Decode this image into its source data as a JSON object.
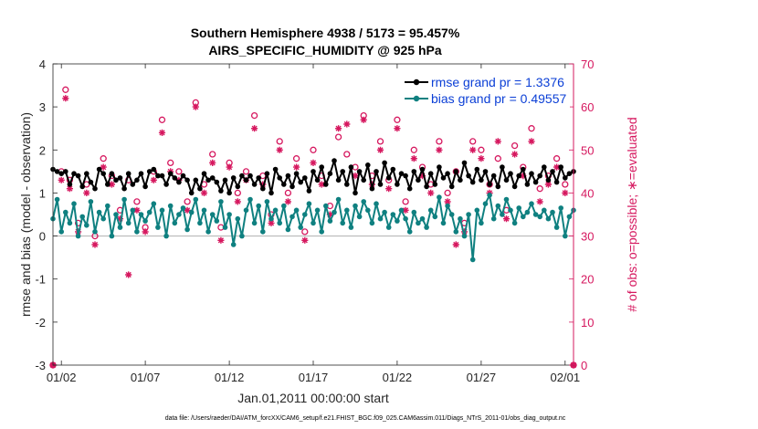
{
  "chart_data": {
    "type": "line",
    "title": "Southern Hemisphere 4938 / 5173 = 95.457%",
    "subtitle": "AIRS_SPECIFIC_HUMIDITY @ 925 hPa",
    "xlabel": "Jan.01,2011 00:00:00 start",
    "ylabel": "rmse and bias (model - observation)",
    "y2label": "# of obs: o=possible; ∗=evaluated",
    "footnote": "data file: /Users/raeder/DAI/ATM_forcXX/CAM6_setup/f.e21.FHIST_BGC.f09_025.CAM6assim.011/Diags_NTrS_2011-01/obs_diag_output.nc",
    "xlim": [
      0.5,
      31.5
    ],
    "ylim": [
      -3,
      4
    ],
    "y2lim": [
      0,
      70
    ],
    "x_ticks": [
      1,
      6,
      11,
      16,
      21,
      26,
      31
    ],
    "x_tick_labels": [
      "01/02",
      "01/07",
      "01/12",
      "01/17",
      "01/22",
      "01/27",
      "02/01"
    ],
    "y_ticks": [
      -3,
      -2,
      -1,
      0,
      1,
      2,
      3,
      4
    ],
    "y2_ticks": [
      0,
      10,
      20,
      30,
      40,
      50,
      60,
      70
    ],
    "legend_position": "top-right",
    "colors": {
      "rmse": "#000000",
      "bias": "#0f8080",
      "obs": "#d6185f",
      "zero_line": "#b0b0b0"
    },
    "series": [
      {
        "name": "rmse grand pr = 1.3376",
        "axis": "left",
        "color": "#000000",
        "x": [
          0.5,
          0.75,
          1.0,
          1.25,
          1.5,
          1.75,
          2.0,
          2.25,
          2.5,
          2.75,
          3.0,
          3.25,
          3.5,
          3.75,
          4.0,
          4.25,
          4.5,
          4.75,
          5.0,
          5.25,
          5.5,
          5.75,
          6.0,
          6.25,
          6.5,
          6.75,
          7.0,
          7.25,
          7.5,
          7.75,
          8.0,
          8.25,
          8.5,
          8.75,
          9.0,
          9.25,
          9.5,
          9.75,
          10.0,
          10.25,
          10.5,
          10.75,
          11.0,
          11.25,
          11.5,
          11.75,
          12.0,
          12.25,
          12.5,
          12.75,
          13.0,
          13.25,
          13.5,
          13.75,
          14.0,
          14.25,
          14.5,
          14.75,
          15.0,
          15.25,
          15.5,
          15.75,
          16.0,
          16.25,
          16.5,
          16.75,
          17.0,
          17.25,
          17.5,
          17.75,
          18.0,
          18.25,
          18.5,
          18.75,
          19.0,
          19.25,
          19.5,
          19.75,
          20.0,
          20.25,
          20.5,
          20.75,
          21.0,
          21.25,
          21.5,
          21.75,
          22.0,
          22.25,
          22.5,
          22.75,
          23.0,
          23.25,
          23.5,
          23.75,
          24.0,
          24.25,
          24.5,
          24.75,
          25.0,
          25.25,
          25.5,
          25.75,
          26.0,
          26.25,
          26.5,
          26.75,
          27.0,
          27.25,
          27.5,
          27.75,
          28.0,
          28.25,
          28.5,
          28.75,
          29.0,
          29.25,
          29.5,
          29.75,
          30.0,
          30.25,
          30.5,
          30.75,
          31.0,
          31.25,
          31.5
        ],
        "y": [
          1.55,
          1.5,
          1.45,
          1.5,
          1.2,
          1.45,
          1.4,
          1.15,
          1.45,
          1.25,
          1.1,
          1.55,
          1.45,
          1.2,
          1.45,
          1.3,
          1.35,
          1.1,
          1.45,
          1.2,
          1.3,
          1.45,
          1.15,
          1.5,
          1.55,
          1.4,
          1.4,
          1.2,
          1.45,
          1.35,
          1.25,
          1.4,
          1.3,
          1.0,
          1.3,
          1.1,
          1.45,
          1.3,
          1.35,
          1.25,
          1.05,
          1.3,
          1.0,
          1.35,
          1.15,
          1.4,
          1.3,
          1.4,
          1.2,
          1.35,
          1.1,
          1.45,
          1.0,
          1.55,
          1.35,
          1.2,
          1.4,
          1.15,
          1.45,
          1.25,
          1.35,
          1.05,
          1.5,
          1.3,
          1.6,
          1.2,
          1.45,
          1.75,
          1.3,
          1.5,
          1.2,
          1.6,
          1.0,
          1.5,
          1.3,
          1.65,
          1.1,
          1.5,
          1.2,
          1.7,
          1.35,
          1.55,
          1.2,
          1.45,
          1.4,
          1.1,
          1.5,
          1.3,
          1.55,
          1.15,
          1.45,
          1.2,
          1.6,
          1.35,
          1.45,
          1.15,
          1.5,
          1.3,
          1.7,
          1.4,
          1.25,
          1.55,
          1.3,
          1.5,
          1.2,
          1.4,
          1.15,
          1.6,
          1.3,
          1.45,
          1.15,
          1.4,
          1.55,
          1.2,
          1.45,
          1.25,
          1.4,
          1.6,
          1.3,
          1.5,
          1.25,
          1.6,
          1.35,
          1.45,
          1.5
        ]
      },
      {
        "name": "bias grand pr = 0.49557",
        "axis": "left",
        "color": "#0f8080",
        "x": [
          0.5,
          0.75,
          1.0,
          1.25,
          1.5,
          1.75,
          2.0,
          2.25,
          2.5,
          2.75,
          3.0,
          3.25,
          3.5,
          3.75,
          4.0,
          4.25,
          4.5,
          4.75,
          5.0,
          5.25,
          5.5,
          5.75,
          6.0,
          6.25,
          6.5,
          6.75,
          7.0,
          7.25,
          7.5,
          7.75,
          8.0,
          8.25,
          8.5,
          8.75,
          9.0,
          9.25,
          9.5,
          9.75,
          10.0,
          10.25,
          10.5,
          10.75,
          11.0,
          11.25,
          11.5,
          11.75,
          12.0,
          12.25,
          12.5,
          12.75,
          13.0,
          13.25,
          13.5,
          13.75,
          14.0,
          14.25,
          14.5,
          14.75,
          15.0,
          15.25,
          15.5,
          15.75,
          16.0,
          16.25,
          16.5,
          16.75,
          17.0,
          17.25,
          17.5,
          17.75,
          18.0,
          18.25,
          18.5,
          18.75,
          19.0,
          19.25,
          19.5,
          19.75,
          20.0,
          20.25,
          20.5,
          20.75,
          21.0,
          21.25,
          21.5,
          21.75,
          22.0,
          22.25,
          22.5,
          22.75,
          23.0,
          23.25,
          23.5,
          23.75,
          24.0,
          24.25,
          24.5,
          24.75,
          25.0,
          25.25,
          25.5,
          25.75,
          26.0,
          26.25,
          26.5,
          26.75,
          27.0,
          27.25,
          27.5,
          27.75,
          28.0,
          28.25,
          28.5,
          28.75,
          29.0,
          29.25,
          29.5,
          29.75,
          30.0,
          30.25,
          30.5,
          30.75,
          31.0,
          31.25,
          31.5
        ],
        "y": [
          0.4,
          0.85,
          0.1,
          0.55,
          0.3,
          0.75,
          0.0,
          0.45,
          0.25,
          0.8,
          0.1,
          0.55,
          0.4,
          0.7,
          0.0,
          0.5,
          0.2,
          0.85,
          0.3,
          0.6,
          0.1,
          0.5,
          0.35,
          0.55,
          0.75,
          0.2,
          0.6,
          0.0,
          0.7,
          0.3,
          0.5,
          0.65,
          0.15,
          0.55,
          0.85,
          0.3,
          0.6,
          0.1,
          0.5,
          0.35,
          0.8,
          0.2,
          0.5,
          -0.2,
          0.4,
          0.0,
          0.6,
          0.85,
          0.3,
          0.7,
          0.1,
          0.8,
          0.4,
          0.6,
          0.3,
          0.7,
          0.15,
          0.45,
          0.6,
          0.2,
          0.5,
          0.75,
          0.3,
          0.6,
          0.1,
          0.7,
          0.35,
          0.55,
          0.85,
          0.3,
          0.6,
          0.2,
          0.7,
          0.45,
          0.8,
          0.6,
          0.3,
          0.75,
          0.4,
          0.55,
          0.2,
          0.5,
          0.35,
          0.6,
          0.4,
          0.1,
          0.55,
          0.3,
          0.4,
          0.2,
          0.6,
          0.45,
          0.9,
          0.3,
          0.7,
          0.5,
          0.1,
          0.4,
          0.0,
          0.5,
          -0.55,
          0.6,
          0.3,
          0.75,
          0.95,
          0.4,
          0.7,
          0.5,
          0.85,
          0.6,
          0.3,
          0.65,
          0.45,
          0.55,
          0.75,
          0.5,
          0.45,
          0.6,
          0.4,
          0.55,
          0.2,
          0.65,
          0.0,
          0.45,
          0.6
        ]
      }
    ],
    "obs_possible": {
      "name": "possible",
      "marker": "o",
      "axis": "right",
      "x": [
        0.5,
        1.0,
        1.25,
        1.5,
        2.0,
        2.5,
        3.0,
        3.5,
        4.0,
        4.5,
        5.0,
        5.5,
        6.0,
        6.5,
        7.0,
        7.5,
        8.0,
        8.5,
        9.0,
        9.5,
        10.0,
        10.5,
        11.0,
        11.5,
        12.0,
        12.5,
        13.0,
        13.5,
        14.0,
        14.5,
        15.0,
        15.5,
        16.0,
        16.5,
        17.0,
        17.5,
        18.0,
        18.5,
        19.0,
        19.5,
        20.0,
        20.5,
        21.0,
        21.5,
        22.0,
        22.5,
        23.0,
        23.5,
        24.0,
        24.5,
        25.0,
        25.5,
        26.0,
        26.5,
        27.0,
        27.5,
        28.0,
        28.5,
        29.0,
        29.5,
        30.0,
        30.5,
        31.0,
        31.5
      ],
      "y": [
        0,
        45,
        64,
        43,
        33,
        42,
        30,
        48,
        44,
        36,
        43,
        38,
        32,
        45,
        57,
        47,
        45,
        38,
        61,
        42,
        49,
        32,
        47,
        40,
        45,
        58,
        44,
        35,
        52,
        40,
        48,
        31,
        50,
        44,
        37,
        53,
        49,
        46,
        58,
        44,
        52,
        43,
        57,
        38,
        50,
        46,
        42,
        52,
        40,
        45,
        33,
        52,
        50,
        42,
        48,
        36,
        51,
        46,
        55,
        41,
        44,
        48,
        42,
        0
      ]
    },
    "obs_evaluated": {
      "name": "evaluated",
      "marker": "*",
      "axis": "right",
      "x": [
        0.5,
        1.0,
        1.25,
        1.5,
        2.0,
        2.5,
        3.0,
        3.5,
        4.0,
        4.5,
        5.0,
        5.5,
        6.0,
        6.5,
        7.0,
        7.5,
        8.0,
        8.5,
        9.0,
        9.5,
        10.0,
        10.5,
        11.0,
        11.5,
        12.0,
        12.5,
        13.0,
        13.5,
        14.0,
        14.5,
        15.0,
        15.5,
        16.0,
        16.5,
        17.0,
        17.5,
        18.0,
        18.5,
        19.0,
        19.5,
        20.0,
        20.5,
        21.0,
        21.5,
        22.0,
        22.5,
        23.0,
        23.5,
        24.0,
        24.5,
        25.0,
        25.5,
        26.0,
        26.5,
        27.0,
        27.5,
        28.0,
        28.5,
        29.0,
        29.5,
        30.0,
        30.5,
        31.0,
        31.5
      ],
      "y": [
        0,
        43,
        62,
        41,
        31,
        40,
        28,
        46,
        42,
        34,
        21,
        36,
        31,
        43,
        54,
        45,
        43,
        36,
        60,
        40,
        47,
        29,
        46,
        38,
        43,
        55,
        42,
        33,
        50,
        38,
        46,
        29,
        47,
        42,
        35,
        55,
        56,
        44,
        57,
        42,
        50,
        41,
        55,
        36,
        48,
        44,
        40,
        50,
        38,
        28,
        31,
        50,
        48,
        40,
        52,
        34,
        49,
        44,
        52,
        38,
        42,
        46,
        40,
        0
      ]
    }
  }
}
